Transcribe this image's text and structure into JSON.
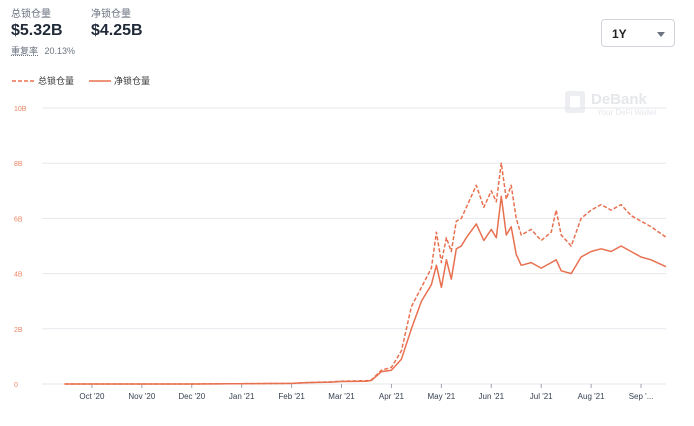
{
  "header": {
    "total_label": "总锁仓量",
    "total_value": "$5.32B",
    "net_label": "净锁仓量",
    "net_value": "$4.25B",
    "ratio_label": "重复率",
    "ratio_value": "20.13%"
  },
  "range_select": {
    "value": "1Y"
  },
  "watermark": {
    "title": "DeBank",
    "subtitle": "Your DeFi Wallet"
  },
  "colors": {
    "accent": "#e8704f",
    "grid": "#e5e7eb",
    "tick_y": "#e98766"
  },
  "chart_data": {
    "type": "line",
    "title": "",
    "xlabel": "",
    "ylabel": "",
    "ylim": [
      0,
      10
    ],
    "y_ticks": [
      0,
      2,
      4,
      6,
      8,
      10
    ],
    "y_tick_labels": [
      "0",
      "2B",
      "4B",
      "6B",
      "8B",
      "10B"
    ],
    "x_tick_labels": [
      "Oct '20",
      "Nov '20",
      "Dec '20",
      "Jan '21",
      "Feb '21",
      "Mar '21",
      "Apr '21",
      "May '21",
      "Jun '21",
      "Jul '21",
      "Aug '21",
      "Sep '..."
    ],
    "x_range": [
      0,
      12.5
    ],
    "grid": true,
    "legend_position": "top-left",
    "series": [
      {
        "name": "总锁仓量",
        "style": "dashed",
        "points": [
          [
            0.45,
            0.0
          ],
          [
            3,
            0.0
          ],
          [
            5,
            0.02
          ],
          [
            5.3,
            0.05
          ],
          [
            5.8,
            0.08
          ],
          [
            6,
            0.1
          ],
          [
            6.5,
            0.12
          ],
          [
            6.6,
            0.15
          ],
          [
            6.8,
            0.5
          ],
          [
            7,
            0.6
          ],
          [
            7.2,
            1.2
          ],
          [
            7.4,
            2.8
          ],
          [
            7.6,
            3.5
          ],
          [
            7.8,
            4.2
          ],
          [
            7.9,
            5.5
          ],
          [
            8.0,
            4.4
          ],
          [
            8.1,
            5.3
          ],
          [
            8.2,
            4.8
          ],
          [
            8.3,
            5.9
          ],
          [
            8.4,
            6.0
          ],
          [
            8.5,
            6.4
          ],
          [
            8.7,
            7.2
          ],
          [
            8.85,
            6.4
          ],
          [
            9.0,
            7.0
          ],
          [
            9.1,
            6.6
          ],
          [
            9.2,
            8.0
          ],
          [
            9.3,
            6.7
          ],
          [
            9.4,
            7.2
          ],
          [
            9.5,
            6.0
          ],
          [
            9.6,
            5.4
          ],
          [
            9.8,
            5.6
          ],
          [
            10.0,
            5.2
          ],
          [
            10.2,
            5.5
          ],
          [
            10.3,
            6.3
          ],
          [
            10.4,
            5.4
          ],
          [
            10.6,
            5.0
          ],
          [
            10.8,
            6.0
          ],
          [
            11.0,
            6.3
          ],
          [
            11.2,
            6.5
          ],
          [
            11.4,
            6.3
          ],
          [
            11.6,
            6.5
          ],
          [
            11.8,
            6.1
          ],
          [
            12.0,
            5.9
          ],
          [
            12.2,
            5.7
          ],
          [
            12.5,
            5.32
          ]
        ]
      },
      {
        "name": "净锁仓量",
        "style": "solid",
        "points": [
          [
            0.45,
            0.0
          ],
          [
            3,
            0.0
          ],
          [
            5,
            0.02
          ],
          [
            5.3,
            0.05
          ],
          [
            5.8,
            0.07
          ],
          [
            6,
            0.09
          ],
          [
            6.5,
            0.1
          ],
          [
            6.6,
            0.13
          ],
          [
            6.8,
            0.45
          ],
          [
            7,
            0.5
          ],
          [
            7.2,
            0.9
          ],
          [
            7.4,
            2.0
          ],
          [
            7.6,
            3.0
          ],
          [
            7.8,
            3.6
          ],
          [
            7.9,
            4.3
          ],
          [
            8.0,
            3.5
          ],
          [
            8.1,
            4.5
          ],
          [
            8.2,
            3.8
          ],
          [
            8.3,
            4.9
          ],
          [
            8.4,
            5.0
          ],
          [
            8.5,
            5.3
          ],
          [
            8.7,
            5.8
          ],
          [
            8.85,
            5.2
          ],
          [
            9.0,
            5.6
          ],
          [
            9.1,
            5.3
          ],
          [
            9.2,
            6.8
          ],
          [
            9.3,
            5.4
          ],
          [
            9.4,
            5.7
          ],
          [
            9.5,
            4.7
          ],
          [
            9.6,
            4.3
          ],
          [
            9.8,
            4.4
          ],
          [
            10.0,
            4.2
          ],
          [
            10.2,
            4.4
          ],
          [
            10.3,
            4.5
          ],
          [
            10.4,
            4.1
          ],
          [
            10.6,
            4.0
          ],
          [
            10.8,
            4.6
          ],
          [
            11.0,
            4.8
          ],
          [
            11.2,
            4.9
          ],
          [
            11.4,
            4.8
          ],
          [
            11.6,
            5.0
          ],
          [
            11.8,
            4.8
          ],
          [
            12.0,
            4.6
          ],
          [
            12.2,
            4.5
          ],
          [
            12.5,
            4.25
          ]
        ]
      }
    ]
  }
}
